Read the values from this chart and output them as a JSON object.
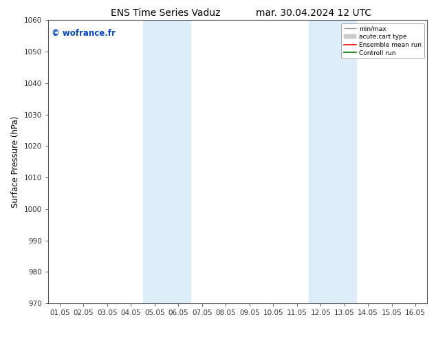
{
  "title_left": "ENS Time Series Vaduz",
  "title_right": "mar. 30.04.2024 12 UTC",
  "ylabel": "Surface Pressure (hPa)",
  "ylim": [
    970,
    1060
  ],
  "yticks": [
    970,
    980,
    990,
    1000,
    1010,
    1020,
    1030,
    1040,
    1050,
    1060
  ],
  "xtick_labels": [
    "01.05",
    "02.05",
    "03.05",
    "04.05",
    "05.05",
    "06.05",
    "07.05",
    "08.05",
    "09.05",
    "10.05",
    "11.05",
    "12.05",
    "13.05",
    "14.05",
    "15.05",
    "16.05"
  ],
  "xtick_positions": [
    0,
    1,
    2,
    3,
    4,
    5,
    6,
    7,
    8,
    9,
    10,
    11,
    12,
    13,
    14,
    15
  ],
  "shaded_regions": [
    {
      "xstart": 3.5,
      "xend": 5.5,
      "color": "#ddeef9"
    },
    {
      "xstart": 10.5,
      "xend": 12.5,
      "color": "#ddeef9"
    }
  ],
  "watermark_text": "© wofrance.fr",
  "watermark_color": "#0044cc",
  "legend_entries": [
    {
      "label": "min/max"
    },
    {
      "label": "acute;cart type"
    },
    {
      "label": "Ensemble mean run"
    },
    {
      "label": "Controll run"
    }
  ],
  "legend_colors": [
    "#999999",
    "#cccccc",
    "#ff0000",
    "#007700"
  ],
  "bg_color": "#ffffff",
  "plot_bg_color": "#ffffff",
  "spine_color": "#555555",
  "tick_color": "#333333",
  "title_fontsize": 10,
  "tick_fontsize": 7.5,
  "ylabel_fontsize": 8.5,
  "watermark_fontsize": 8.5
}
